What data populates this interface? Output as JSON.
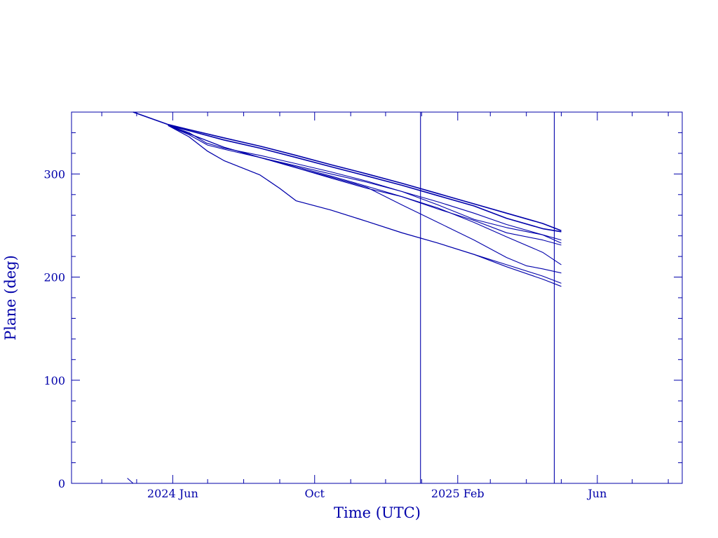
{
  "chart_data": {
    "type": "line",
    "xlabel": "Time (UTC)",
    "ylabel": "Plane (deg)",
    "xlim": [
      "2024-03-06",
      "2025-08-13"
    ],
    "ylim": [
      0,
      360
    ],
    "x_ticks": [
      {
        "date": "2024-06-01",
        "label": "2024 Jun"
      },
      {
        "date": "2024-10-01",
        "label": "Oct"
      },
      {
        "date": "2025-02-01",
        "label": "2025 Feb"
      },
      {
        "date": "2025-06-01",
        "label": "Jun"
      }
    ],
    "y_ticks": [
      0,
      100,
      200,
      300
    ],
    "vertical_lines": [
      "2024-12-31",
      "2025-04-25"
    ],
    "series": [
      {
        "x": [
          "2024-04-28",
          "2024-05-28",
          "2024-06-15",
          "2024-07-15",
          "2024-08-15",
          "2024-09-15",
          "2024-10-15",
          "2024-11-15",
          "2024-12-15",
          "2025-01-15",
          "2025-02-15",
          "2025-03-15",
          "2025-04-15",
          "2025-05-01"
        ],
        "values": [
          360,
          348,
          343,
          335,
          327,
          318,
          309,
          300,
          291,
          281,
          271,
          262,
          252,
          245
        ]
      },
      {
        "x": [
          "2024-05-28",
          "2024-06-15",
          "2024-07-15",
          "2024-08-15",
          "2024-09-15",
          "2024-10-15",
          "2024-11-15",
          "2024-12-15",
          "2025-01-15",
          "2025-02-15",
          "2025-03-15",
          "2025-04-15",
          "2025-05-01"
        ],
        "values": [
          347,
          342,
          333,
          325,
          316,
          307,
          298,
          289,
          279,
          269,
          257,
          247,
          244
        ]
      },
      {
        "x": [
          "2024-05-28",
          "2024-06-15",
          "2024-06-30",
          "2024-07-15",
          "2024-08-15",
          "2024-09-15",
          "2024-10-15",
          "2024-11-15",
          "2024-12-15",
          "2025-01-15",
          "2025-02-15",
          "2025-03-15",
          "2025-04-15",
          "2025-05-01"
        ],
        "values": [
          347,
          340,
          330,
          325,
          318,
          310,
          302,
          293,
          283,
          273,
          262,
          251,
          241,
          236
        ]
      },
      {
        "x": [
          "2024-05-28",
          "2024-06-15",
          "2024-07-01",
          "2024-07-15",
          "2024-08-15",
          "2024-09-15",
          "2024-10-15",
          "2024-11-15",
          "2024-12-15",
          "2025-01-15",
          "2025-02-15",
          "2025-03-15",
          "2025-04-15",
          "2025-05-01"
        ],
        "values": [
          347,
          338,
          328,
          324,
          316,
          308,
          300,
          292,
          283,
          270,
          256,
          248,
          241,
          233
        ]
      },
      {
        "x": [
          "2024-05-28",
          "2024-06-15",
          "2024-07-15",
          "2024-08-15",
          "2024-09-15",
          "2024-10-15",
          "2024-11-15",
          "2024-12-15",
          "2025-01-15",
          "2025-02-15",
          "2025-03-15",
          "2025-04-15",
          "2025-05-01"
        ],
        "values": [
          347,
          339,
          326,
          316,
          306,
          296,
          286,
          278,
          266,
          255,
          243,
          236,
          231
        ]
      },
      {
        "x": [
          "2024-05-28",
          "2024-06-15",
          "2024-07-15",
          "2024-08-15",
          "2024-09-15",
          "2024-10-15",
          "2024-11-15",
          "2024-12-15",
          "2025-01-15",
          "2025-02-15",
          "2025-03-15",
          "2025-04-15",
          "2025-05-01"
        ],
        "values": [
          347,
          339,
          326,
          316,
          307,
          298,
          288,
          278,
          267,
          253,
          239,
          224,
          212
        ]
      },
      {
        "x": [
          "2024-05-28",
          "2024-06-15",
          "2024-07-15",
          "2024-08-15",
          "2024-09-15",
          "2024-10-15",
          "2024-11-15",
          "2024-12-15",
          "2025-01-15",
          "2025-02-15",
          "2025-03-15",
          "2025-04-01",
          "2025-04-15",
          "2025-05-01"
        ],
        "values": [
          347,
          339,
          326,
          316,
          306,
          297,
          287,
          270,
          253,
          236,
          219,
          211,
          208,
          204
        ]
      },
      {
        "x": [
          "2024-05-28",
          "2024-06-15",
          "2024-07-01",
          "2024-07-15",
          "2024-08-15",
          "2024-09-01",
          "2024-09-15",
          "2024-10-15",
          "2024-11-15",
          "2024-12-15",
          "2025-01-15",
          "2025-02-15",
          "2025-03-15",
          "2025-04-15",
          "2025-05-01"
        ],
        "values": [
          347,
          336,
          322,
          313,
          299,
          286,
          274,
          265,
          254,
          243,
          233,
          222,
          212,
          201,
          194
        ]
      },
      {
        "x": [
          "2024-05-28",
          "2024-06-15",
          "2024-07-01",
          "2024-07-15",
          "2024-08-15",
          "2024-09-01",
          "2024-09-15",
          "2024-10-15",
          "2024-11-15",
          "2024-12-15",
          "2025-01-15",
          "2025-02-15",
          "2025-03-15",
          "2025-04-15",
          "2025-05-01"
        ],
        "values": [
          347,
          336,
          322,
          313,
          299,
          286,
          274,
          265,
          254,
          243,
          233,
          222,
          210,
          198,
          191
        ]
      },
      {
        "x": [
          "2024-04-23",
          "2024-04-28"
        ],
        "values": [
          5,
          0
        ]
      }
    ]
  }
}
